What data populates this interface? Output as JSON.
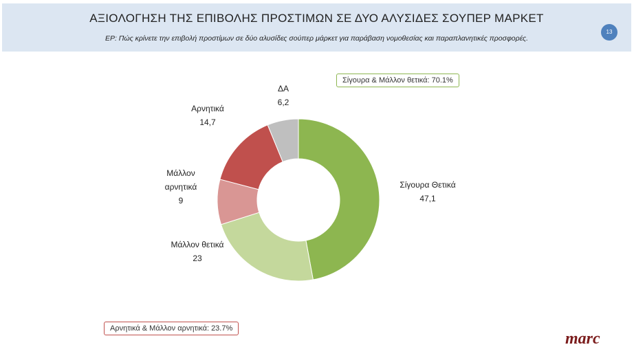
{
  "header": {
    "title": "ΑΞΙΟΛΟΓΗΣΗ ΤΗΣ ΕΠΙΒΟΛΗΣ ΠΡΟΣΤΙΜΩΝ ΣΕ ΔΥΟ ΑΛΥΣΙΔΕΣ ΣΟΥΠΕΡ ΜΑΡΚΕΤ",
    "subtitle": "ΕΡ: Πώς κρίνετε την επιβολή προστίμων σε δύο αλυσίδες σούπερ μάρκετ για παράβαση νομοθεσίας και παραπλανητικές προσφορές.",
    "page_number": "13"
  },
  "summary": {
    "positive": "Σίγουρα & Μάλλον θετικά: 70.1%",
    "negative": "Αρνητικά & Μάλλον αρνητικά: 23.7%"
  },
  "logo": "marc",
  "chart_data": {
    "type": "pie",
    "variant": "donut",
    "start": "top",
    "direction": "clockwise",
    "categories": [
      "Σίγουρα Θετικά",
      "Μάλλον θετικά",
      "Μάλλον αρνητικά",
      "Αρνητικά",
      "ΔΑ"
    ],
    "values": [
      47.1,
      23,
      9,
      14.7,
      6.2
    ],
    "value_labels": [
      "47,1",
      "23",
      "9",
      "14,7",
      "6,2"
    ],
    "colors": [
      "#8db650",
      "#c4d89c",
      "#d99694",
      "#c0504d",
      "#bfbfbf"
    ]
  }
}
